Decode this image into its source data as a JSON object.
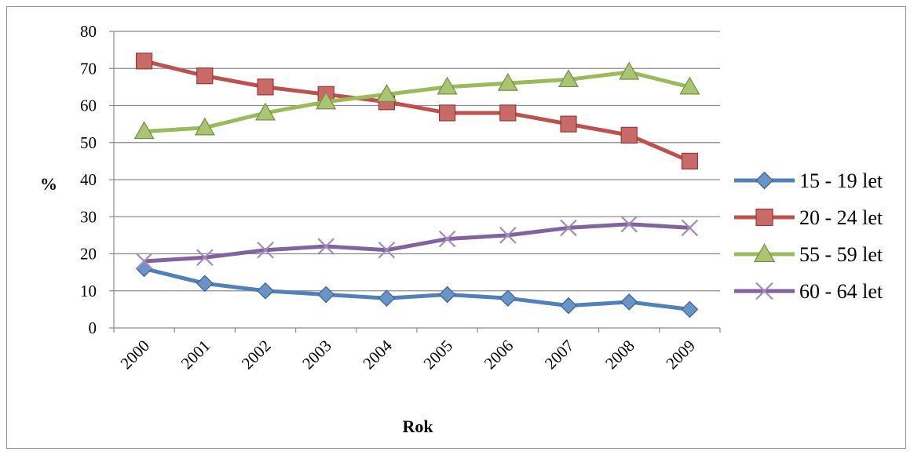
{
  "chart_data": {
    "type": "line",
    "title": "",
    "xlabel": "Rok",
    "ylabel": "%",
    "ylim": [
      0,
      80
    ],
    "y_ticks": [
      0,
      10,
      20,
      30,
      40,
      50,
      60,
      70,
      80
    ],
    "grid": "horizontal",
    "legend_position": "right",
    "categories": [
      "2000",
      "2001",
      "2002",
      "2003",
      "2004",
      "2005",
      "2006",
      "2007",
      "2008",
      "2009"
    ],
    "series": [
      {
        "name": "15 - 19 let",
        "color": "#4f81bd",
        "marker": "diamond",
        "values": [
          16,
          12,
          10,
          9,
          8,
          9,
          8,
          6,
          7,
          5
        ]
      },
      {
        "name": "20 - 24 let",
        "color": "#c0504d",
        "marker": "square",
        "values": [
          72,
          68,
          65,
          63,
          61,
          58,
          58,
          55,
          52,
          45
        ]
      },
      {
        "name": "55 - 59 let",
        "color": "#9bbb59",
        "marker": "triangle",
        "values": [
          53,
          54,
          58,
          61,
          63,
          65,
          66,
          67,
          69,
          65
        ]
      },
      {
        "name": "60 - 64 let",
        "color": "#8064a2",
        "marker": "x",
        "values": [
          18,
          19,
          21,
          22,
          21,
          24,
          25,
          27,
          28,
          27
        ]
      }
    ]
  }
}
